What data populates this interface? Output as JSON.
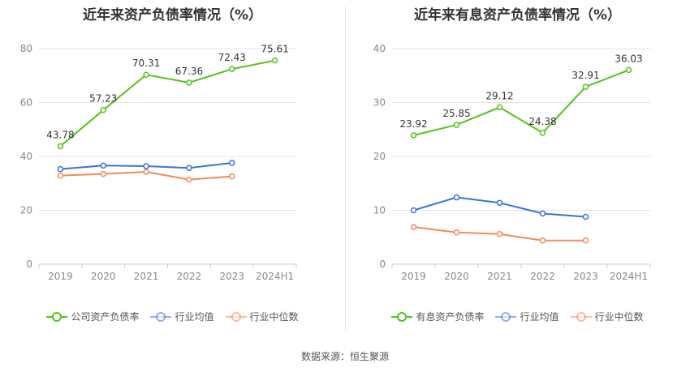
{
  "chart_data": [
    {
      "type": "line",
      "title": "近年来资产负债率情况（%）",
      "categories": [
        "2019",
        "2020",
        "2021",
        "2022",
        "2023",
        "2024H1"
      ],
      "ylim": [
        0,
        80
      ],
      "yticks": [
        0,
        20,
        40,
        60,
        80
      ],
      "grid": true,
      "legend": "bottom",
      "series": [
        {
          "name": "公司资产负债率",
          "color": "#52c41a",
          "values": [
            43.78,
            57.23,
            70.31,
            67.36,
            72.43,
            75.61
          ],
          "labels": [
            "43.78",
            "57.23",
            "70.31",
            "67.36",
            "72.43",
            "75.61"
          ]
        },
        {
          "name": "行业均值",
          "color": "#3a73d9",
          "values": [
            35.3,
            36.6,
            36.4,
            35.7,
            37.6,
            null
          ]
        },
        {
          "name": "行业中位数",
          "color": "#f08a5d",
          "values": [
            32.9,
            33.5,
            34.3,
            31.4,
            32.6,
            null
          ]
        }
      ]
    },
    {
      "type": "line",
      "title": "近年来有息资产负债率情况（%）",
      "categories": [
        "2019",
        "2020",
        "2021",
        "2022",
        "2023",
        "2024H1"
      ],
      "ylim": [
        0,
        40
      ],
      "yticks": [
        0,
        10,
        20,
        30,
        40
      ],
      "grid": true,
      "legend": "bottom",
      "series": [
        {
          "name": "有息资产负债率",
          "color": "#52c41a",
          "values": [
            23.92,
            25.85,
            29.12,
            24.38,
            32.91,
            36.03
          ],
          "labels": [
            "23.92",
            "25.85",
            "29.12",
            "24.38",
            "32.91",
            "36.03"
          ]
        },
        {
          "name": "行业均值",
          "color": "#3a73d9",
          "values": [
            10.0,
            12.4,
            11.4,
            9.4,
            8.8,
            null
          ]
        },
        {
          "name": "行业中位数",
          "color": "#f08a5d",
          "values": [
            6.9,
            5.9,
            5.6,
            4.4,
            4.4,
            null
          ]
        }
      ]
    }
  ],
  "source": "数据来源：恒生聚源"
}
